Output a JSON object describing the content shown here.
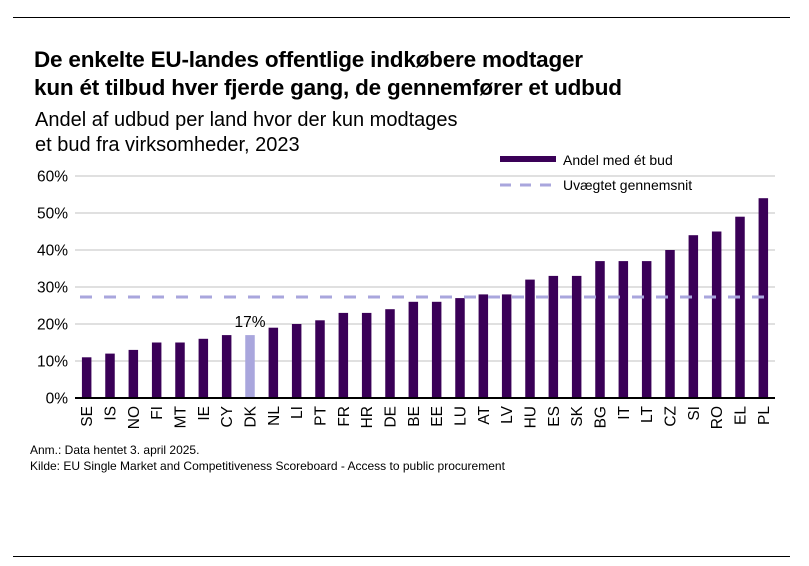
{
  "title_lines": [
    "De enkelte EU-landes offentlige indkøbere modtager",
    "kun ét tilbud hver fjerde gang, de gennemfører et udbud"
  ],
  "subtitle_lines": [
    "Andel af udbud per land hvor der kun modtages",
    "et bud fra virksomheder, 2023"
  ],
  "notes": {
    "anm": "Anm.: Data hentet 3. april 2025.",
    "kilde": "Kilde: EU Single Market and Competitiveness Scoreboard - Access to public procurement"
  },
  "colors": {
    "bar": "#3a0057",
    "highlight": "#a9a6dd",
    "average": "#a9a6dd",
    "grid": "#c0c0c0",
    "axis": "#000000"
  },
  "chart_data": {
    "type": "bar",
    "title": "De enkelte EU-landes offentlige indkøbere modtager kun ét tilbud hver fjerde gang, de gennemfører et udbud",
    "subtitle": "Andel af udbud per land hvor der kun modtages et bud fra virksomheder, 2023",
    "xlabel": "",
    "ylabel": "",
    "ylim": [
      0,
      60
    ],
    "yticks": [
      0,
      10,
      20,
      30,
      40,
      50,
      60
    ],
    "ytick_labels": [
      "0%",
      "10%",
      "20%",
      "30%",
      "40%",
      "50%",
      "60%"
    ],
    "grid": true,
    "legend_position": "top-right",
    "categories": [
      "SE",
      "IS",
      "NO",
      "FI",
      "MT",
      "IE",
      "CY",
      "DK",
      "NL",
      "LI",
      "PT",
      "FR",
      "HR",
      "DE",
      "BE",
      "EE",
      "LU",
      "AT",
      "LV",
      "HU",
      "ES",
      "SK",
      "BG",
      "IT",
      "LT",
      "CZ",
      "SI",
      "RO",
      "EL",
      "PL"
    ],
    "series": [
      {
        "name": "Andel med ét bud",
        "type": "bar",
        "values": [
          11,
          12,
          13,
          15,
          15,
          16,
          17,
          17,
          19,
          20,
          21,
          23,
          23,
          24,
          26,
          26,
          27,
          28,
          28,
          32,
          33,
          33,
          37,
          37,
          37,
          40,
          44,
          45,
          49,
          54
        ]
      },
      {
        "name": "Uvægtet gennemsnit",
        "type": "line",
        "style": "dashed",
        "value": 27.3
      }
    ],
    "highlight": {
      "category": "DK",
      "label": "17%"
    }
  }
}
